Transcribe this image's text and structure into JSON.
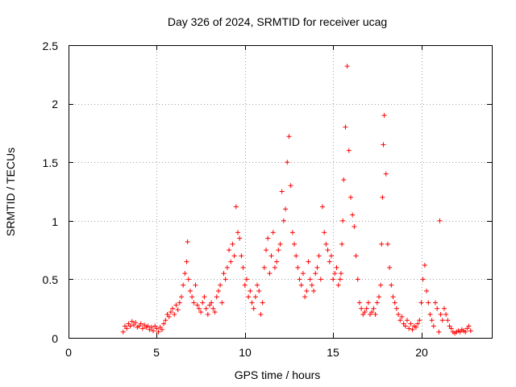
{
  "chart_data": {
    "type": "scatter",
    "title": "Day 326 of 2024, SRMTID for receiver ucag",
    "xlabel": "GPS time / hours",
    "ylabel": "SRMTID / TECUs",
    "xlim": [
      0,
      24
    ],
    "ylim": [
      0,
      2.5
    ],
    "xticks": [
      0,
      5,
      10,
      15,
      20
    ],
    "yticks": [
      0,
      0.5,
      1,
      1.5,
      2,
      2.5
    ],
    "xtick_labels": [
      "0",
      "5",
      "10",
      "15",
      "20"
    ],
    "ytick_labels": [
      "0",
      "0.5",
      "1",
      "1.5",
      "2",
      "2.5"
    ],
    "grid": true,
    "marker": "+",
    "color": "#ff0000",
    "series": [
      {
        "name": "SRMTID",
        "x": [
          3.1,
          3.2,
          3.3,
          3.4,
          3.5,
          3.6,
          3.7,
          3.8,
          3.9,
          4.0,
          4.1,
          4.2,
          4.3,
          4.4,
          4.5,
          4.6,
          4.7,
          4.8,
          4.9,
          5.0,
          5.1,
          5.2,
          5.3,
          5.4,
          5.5,
          5.6,
          5.7,
          5.8,
          5.9,
          6.0,
          6.1,
          6.2,
          6.3,
          6.4,
          6.5,
          6.6,
          6.7,
          6.75,
          6.8,
          6.9,
          7.0,
          7.1,
          7.2,
          7.3,
          7.4,
          7.5,
          7.6,
          7.7,
          7.8,
          7.9,
          8.0,
          8.1,
          8.2,
          8.3,
          8.4,
          8.5,
          8.6,
          8.7,
          8.8,
          8.9,
          9.0,
          9.1,
          9.2,
          9.3,
          9.4,
          9.5,
          9.6,
          9.7,
          9.8,
          9.9,
          10.0,
          10.1,
          10.2,
          10.3,
          10.4,
          10.5,
          10.6,
          10.7,
          10.8,
          10.9,
          11.0,
          11.1,
          11.2,
          11.3,
          11.4,
          11.5,
          11.6,
          11.7,
          11.8,
          11.9,
          12.0,
          12.1,
          12.2,
          12.3,
          12.4,
          12.5,
          12.6,
          12.7,
          12.8,
          12.9,
          13.0,
          13.1,
          13.2,
          13.3,
          13.4,
          13.5,
          13.6,
          13.7,
          13.8,
          13.9,
          14.0,
          14.1,
          14.2,
          14.3,
          14.4,
          14.5,
          14.6,
          14.7,
          14.8,
          14.9,
          15.0,
          15.1,
          15.2,
          15.3,
          15.4,
          15.45,
          15.5,
          15.55,
          15.6,
          15.7,
          15.8,
          15.9,
          16.0,
          16.1,
          16.2,
          16.3,
          16.4,
          16.5,
          16.6,
          16.7,
          16.8,
          16.9,
          17.0,
          17.1,
          17.2,
          17.3,
          17.4,
          17.5,
          17.6,
          17.7,
          17.75,
          17.8,
          17.85,
          17.9,
          18.0,
          18.1,
          18.2,
          18.3,
          18.4,
          18.5,
          18.6,
          18.7,
          18.8,
          18.9,
          19.0,
          19.1,
          19.2,
          19.3,
          19.4,
          19.5,
          19.6,
          19.7,
          19.8,
          19.9,
          20.0,
          20.1,
          20.2,
          20.3,
          20.4,
          20.5,
          20.6,
          20.7,
          20.8,
          20.9,
          21.0,
          21.05,
          21.1,
          21.2,
          21.3,
          21.4,
          21.5,
          21.6,
          21.7,
          21.8,
          21.9,
          22.0,
          22.1,
          22.2,
          22.3,
          22.4,
          22.5,
          22.6,
          22.7,
          22.8
        ],
        "y": [
          0.05,
          0.1,
          0.08,
          0.12,
          0.1,
          0.14,
          0.11,
          0.13,
          0.09,
          0.1,
          0.12,
          0.08,
          0.11,
          0.09,
          0.1,
          0.07,
          0.09,
          0.06,
          0.1,
          0.08,
          0.05,
          0.09,
          0.07,
          0.12,
          0.15,
          0.2,
          0.18,
          0.22,
          0.25,
          0.2,
          0.28,
          0.24,
          0.3,
          0.35,
          0.45,
          0.55,
          0.65,
          0.82,
          0.5,
          0.4,
          0.35,
          0.3,
          0.45,
          0.28,
          0.25,
          0.22,
          0.3,
          0.35,
          0.25,
          0.2,
          0.28,
          0.3,
          0.25,
          0.22,
          0.35,
          0.4,
          0.45,
          0.3,
          0.55,
          0.5,
          0.6,
          0.75,
          0.65,
          0.8,
          0.7,
          1.12,
          0.9,
          0.85,
          0.7,
          0.6,
          0.45,
          0.5,
          0.35,
          0.4,
          0.3,
          0.25,
          0.35,
          0.45,
          0.4,
          0.2,
          0.3,
          0.6,
          0.75,
          0.85,
          0.55,
          0.7,
          0.9,
          0.6,
          0.65,
          0.75,
          0.8,
          1.25,
          1.0,
          1.1,
          1.5,
          1.72,
          1.3,
          0.9,
          0.8,
          0.7,
          0.6,
          0.5,
          0.45,
          0.55,
          0.35,
          0.4,
          0.65,
          0.5,
          0.45,
          0.4,
          0.55,
          0.6,
          0.7,
          0.5,
          1.12,
          0.9,
          0.8,
          0.75,
          0.65,
          0.7,
          0.5,
          0.55,
          0.6,
          0.45,
          0.5,
          0.55,
          0.8,
          1.0,
          1.35,
          1.8,
          2.32,
          1.6,
          1.2,
          1.05,
          0.95,
          0.7,
          0.5,
          0.3,
          0.25,
          0.2,
          0.22,
          0.25,
          0.3,
          0.2,
          0.22,
          0.25,
          0.2,
          0.3,
          0.35,
          0.45,
          0.8,
          1.2,
          1.65,
          1.9,
          1.4,
          0.8,
          0.6,
          0.45,
          0.35,
          0.3,
          0.25,
          0.2,
          0.15,
          0.18,
          0.12,
          0.1,
          0.15,
          0.08,
          0.12,
          0.07,
          0.1,
          0.09,
          0.12,
          0.15,
          0.3,
          0.5,
          0.62,
          0.4,
          0.3,
          0.2,
          0.15,
          0.1,
          0.3,
          0.25,
          0.05,
          1.0,
          0.2,
          0.15,
          0.25,
          0.2,
          0.15,
          0.1,
          0.08,
          0.05,
          0.04,
          0.05,
          0.06,
          0.05,
          0.07,
          0.06,
          0.05,
          0.08,
          0.1,
          0.06
        ]
      }
    ]
  }
}
